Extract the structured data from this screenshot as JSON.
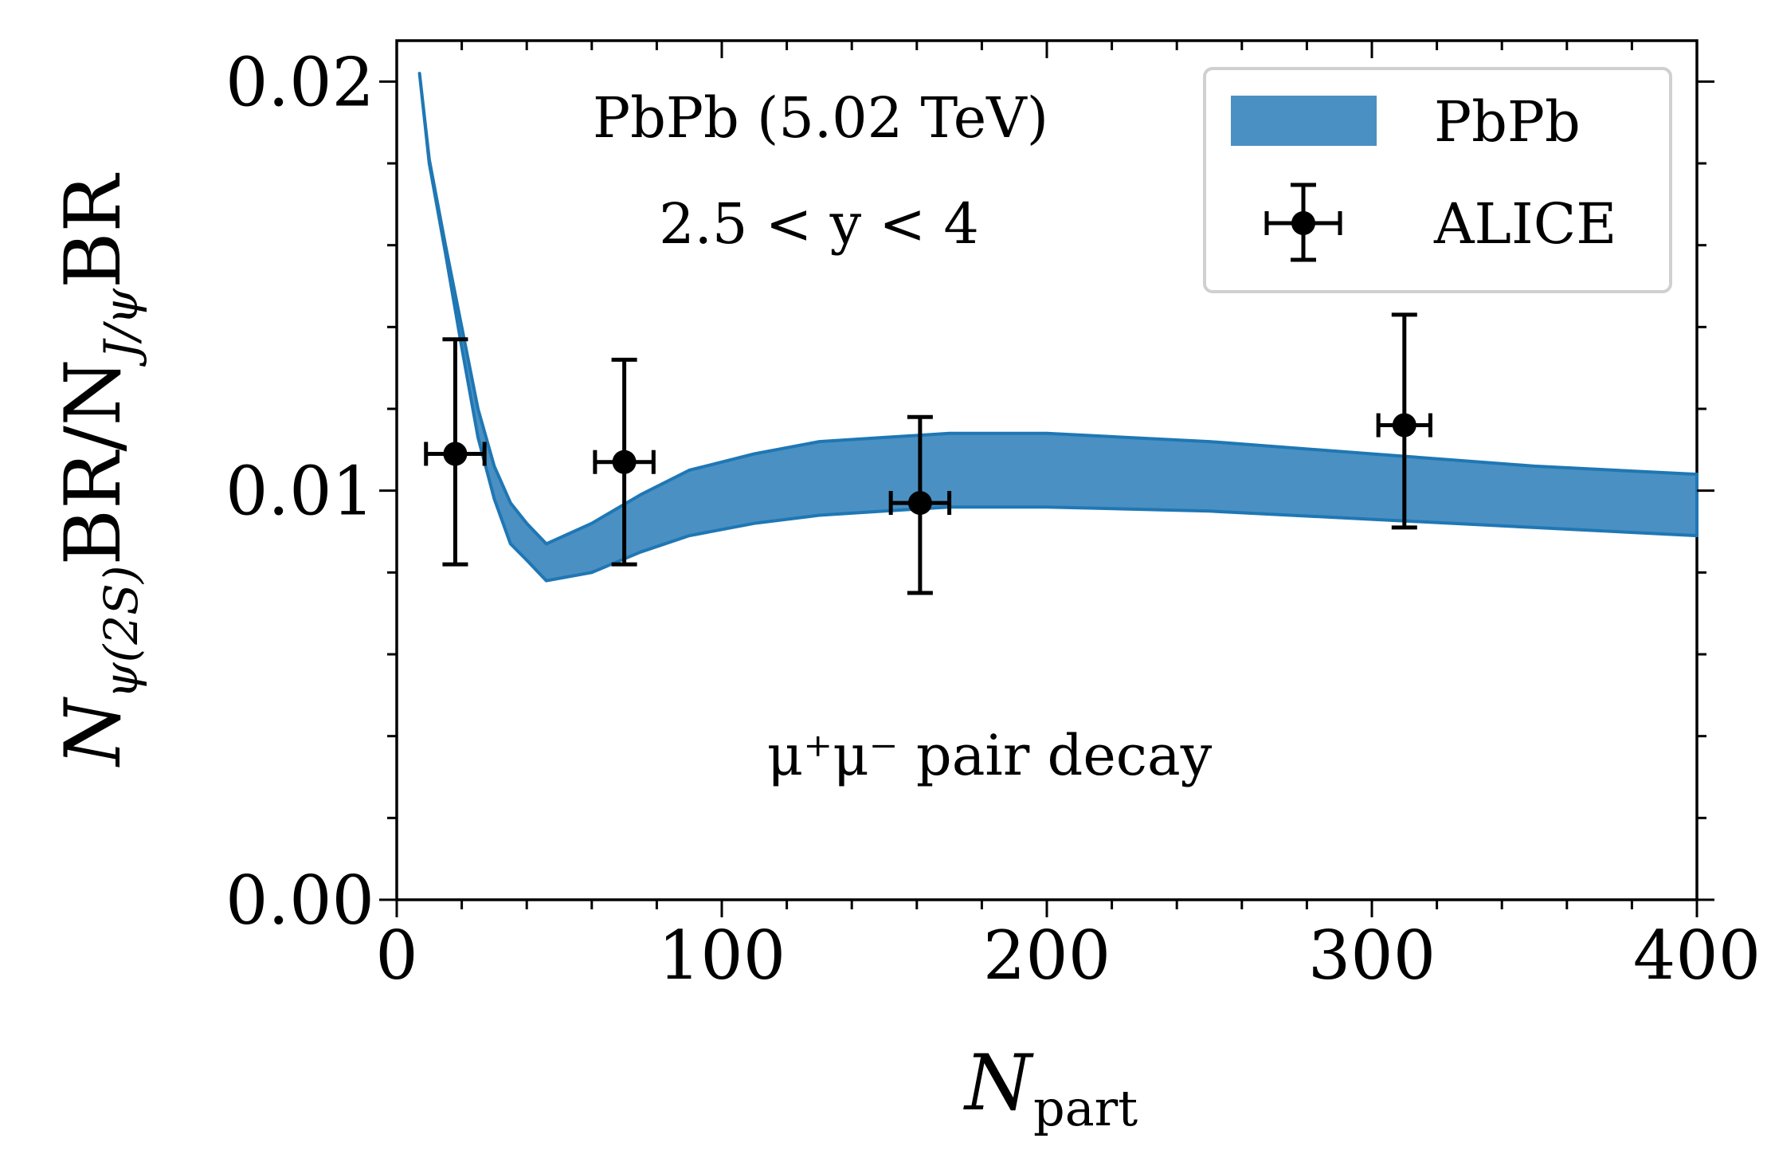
{
  "chart_data": {
    "type": "line",
    "title": "",
    "xlabel": "N",
    "xlabel_sub": "part",
    "ylabel": "N_ψ(2S) BR / N_J/ψ BR",
    "ylabel_parts": {
      "n1": "N",
      "sub1": "ψ(2S)",
      "mid": "BR/N",
      "sub2": "J/ψ",
      "end": "BR"
    },
    "xlim": [
      0,
      400
    ],
    "ylim": [
      0.0,
      0.021
    ],
    "x_ticks": [
      0,
      100,
      200,
      300,
      400
    ],
    "x_tick_labels": [
      "0",
      "100",
      "200",
      "300",
      "400"
    ],
    "y_ticks": [
      0.0,
      0.01,
      0.02
    ],
    "y_tick_labels": [
      "0.00",
      "0.01",
      "0.02"
    ],
    "annotations": {
      "line1": "PbPb (5.02 TeV)",
      "line2": "2.5 < y < 4",
      "decay": "μ⁺μ⁻ pair decay"
    },
    "legend": {
      "placement": "top-right",
      "band_label": "PbPb",
      "points_label": "ALICE"
    },
    "colors": {
      "band_fill": "#4a90c2",
      "band_edge": "#1f77b4",
      "points": "#000000"
    },
    "series": [
      {
        "name": "PbPb",
        "kind": "band",
        "x": [
          7,
          10,
          15,
          20,
          25,
          30,
          35,
          40,
          46,
          60,
          75,
          90,
          110,
          130,
          150,
          170,
          200,
          250,
          300,
          350,
          400
        ],
        "lower": [
          0.0202,
          0.018,
          0.0158,
          0.0135,
          0.0113,
          0.0098,
          0.0087,
          0.0083,
          0.0078,
          0.008,
          0.0085,
          0.0089,
          0.0092,
          0.0094,
          0.0095,
          0.0096,
          0.0096,
          0.0095,
          0.0093,
          0.0091,
          0.0089
        ],
        "upper": [
          0.0202,
          0.0181,
          0.016,
          0.014,
          0.012,
          0.0106,
          0.0097,
          0.0092,
          0.0087,
          0.0092,
          0.0099,
          0.0105,
          0.0109,
          0.0112,
          0.0113,
          0.0114,
          0.0114,
          0.0112,
          0.0109,
          0.0106,
          0.0104
        ]
      },
      {
        "name": "ALICE",
        "kind": "errorbar",
        "points": [
          {
            "x": 18,
            "y": 0.0109,
            "xerr": 9,
            "yerr_low": 0.0027,
            "yerr_high": 0.0028
          },
          {
            "x": 70,
            "y": 0.0107,
            "xerr": 9,
            "yerr_low": 0.0025,
            "yerr_high": 0.0025
          },
          {
            "x": 161,
            "y": 0.0097,
            "xerr": 9,
            "yerr_low": 0.0022,
            "yerr_high": 0.0021
          },
          {
            "x": 310,
            "y": 0.0116,
            "xerr": 8,
            "yerr_low": 0.0025,
            "yerr_high": 0.0027
          }
        ]
      }
    ]
  }
}
